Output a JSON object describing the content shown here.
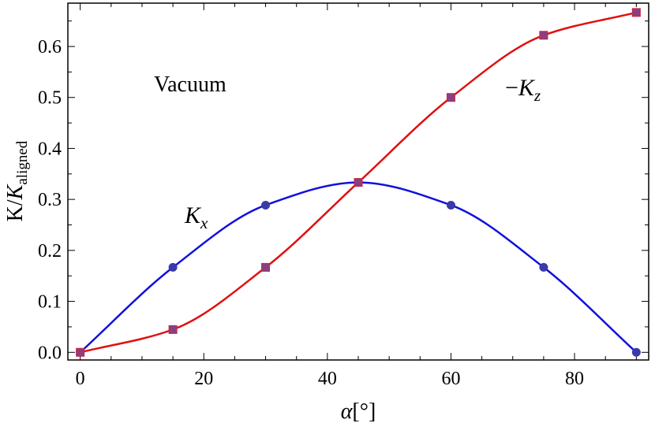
{
  "chart_data": {
    "type": "line",
    "xlabel_symbol": "α",
    "xlabel_unit": "[°]",
    "ylabel_prefix": "K/",
    "ylabel_italic": "K",
    "ylabel_sub": "aligned",
    "annotation": "Vacuum",
    "xlim": [
      -2,
      92
    ],
    "ylim": [
      -0.015,
      0.685
    ],
    "x_ticks": [
      0,
      20,
      40,
      60,
      80
    ],
    "y_ticks": [
      0.0,
      0.1,
      0.2,
      0.3,
      0.4,
      0.5,
      0.6
    ],
    "y_tick_labels": [
      "0.0",
      "0.1",
      "0.2",
      "0.3",
      "0.4",
      "0.5",
      "0.6"
    ],
    "grid": false,
    "series": [
      {
        "name": "K_x",
        "label_main": "K",
        "label_sub": "x",
        "label_prefix": "",
        "color": "#1010dd",
        "marker": "circle",
        "marker_color": "#3a3aa8",
        "x": [
          0,
          15,
          30,
          45,
          60,
          75,
          90
        ],
        "values": [
          0.0,
          0.1667,
          0.2887,
          0.3333,
          0.2887,
          0.1667,
          0.0
        ]
      },
      {
        "name": "-K_z",
        "label_main": "K",
        "label_sub": "z",
        "label_prefix": "−",
        "color": "#e01010",
        "marker": "square",
        "marker_color": "#8a4080",
        "x": [
          0,
          15,
          30,
          45,
          60,
          75,
          90
        ],
        "values": [
          0.0,
          0.0447,
          0.1667,
          0.3333,
          0.5,
          0.622,
          0.6667
        ]
      }
    ]
  }
}
